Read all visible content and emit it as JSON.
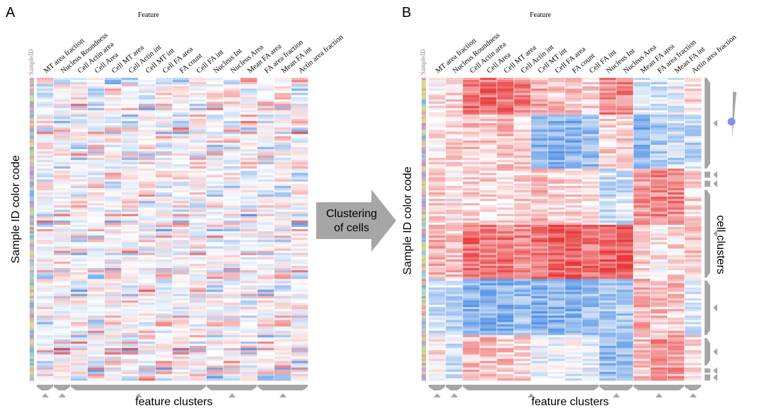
{
  "panels": [
    {
      "letter": "A",
      "feature_title": "Feature",
      "sample_id_label": "SampleID",
      "y_label": "Sample ID color code",
      "bottom_label": "feature clusters",
      "features": [
        "MT area fraction",
        "Nucleus Roundness",
        "Cell Actin area",
        "Cell Area",
        "Cell MT area",
        "Cell Actin int",
        "Cell MT int",
        "Cell FA area",
        "FA count",
        "Cell FA int",
        "Nucleus Int",
        "Nucleus Area",
        "Mean FA area",
        "FA area fraction",
        "Mean FA int",
        "Actin area fraction"
      ]
    },
    {
      "letter": "B",
      "feature_title": "Feature",
      "sample_id_label": "SampleID",
      "y_label": "Sample ID color code",
      "bottom_label": "feature clusters",
      "right_label": "cell clusters",
      "features": [
        "MT area fraction",
        "Nucleus Roundness",
        "Cell Actin area",
        "Cell Area",
        "Cell MT area",
        "Cell Actin int",
        "Cell MT int",
        "Cell FA area",
        "FA count",
        "Cell FA int",
        "Nucleus Int",
        "Nucleus Area",
        "Mean FA area",
        "FA area fraction",
        "Mean FA int",
        "Actin area fraction"
      ]
    }
  ],
  "arrow": {
    "line1": "Clustering",
    "line2": "of cells"
  },
  "colors": {
    "high": "#e8383a",
    "mid": "#ffffff",
    "low": "#3b82e0",
    "cluster_bar": "#a6a6a6",
    "arrow": "#a6a6a6"
  }
}
